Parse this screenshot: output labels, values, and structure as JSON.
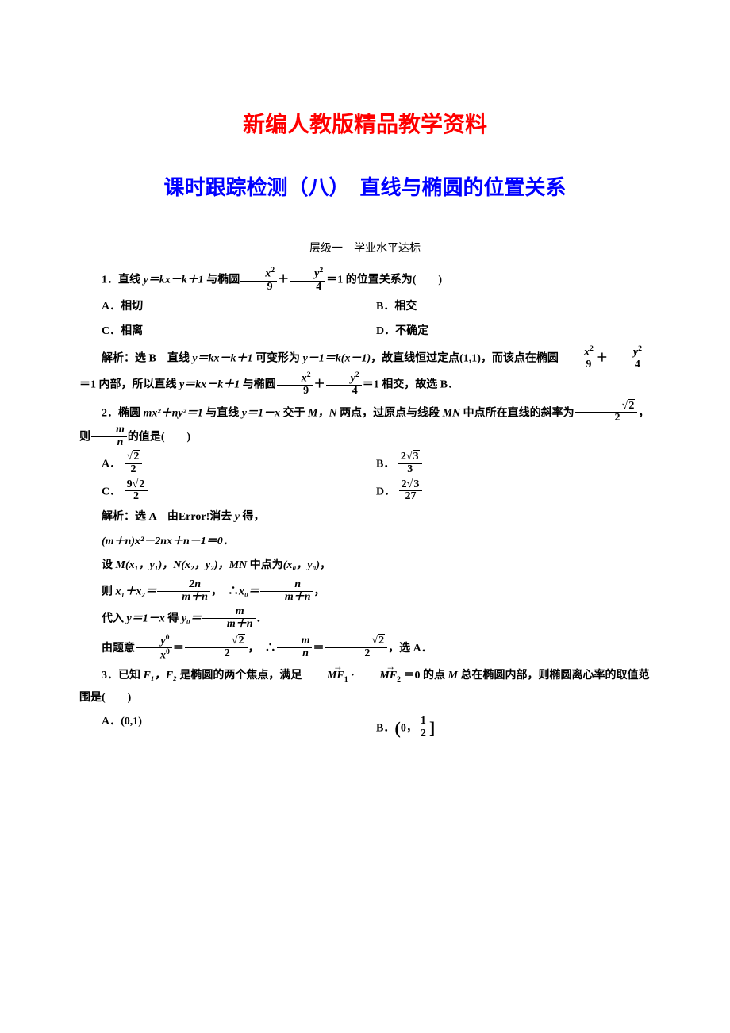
{
  "heading1": "新编人教版精品教学资料",
  "heading2": "课时跟踪检测（八）　直线与椭圆的位置关系",
  "level": "层级一　学业水平达标",
  "q1": {
    "num": "1．",
    "pre": "直线 ",
    "line": "y＝kx－k＋1",
    "mid": " 与椭圆",
    "tail": "＝1 的位置关系为(　　)",
    "frac1n": "x",
    "frac1d": "9",
    "frac2n": "y",
    "frac2d": "4",
    "optA": "A．相切",
    "optB": "B．相交",
    "optC": "C．相离",
    "optD": "D．不确定",
    "sol_label": "解析：",
    "sol_pick": "选 B　",
    "sol1a": "直线 ",
    "sol1b": " 可变形为 ",
    "sol_line2": "y－1＝k(x－1)",
    "sol1c": "，故直线恒过定点",
    "sol_point": "(1,1)",
    "sol1d": "，而该点在椭圆",
    "sol1e": "＝1 内部，所以直线 ",
    "sol1f": " 与椭圆",
    "sol1g": "＝1 相交，故选 B．"
  },
  "q2": {
    "num": "2．",
    "t1": "椭圆 ",
    "eq": "mx²＋ny²＝1",
    "t2": " 与直线 ",
    "line": "y＝1－x",
    "t3": " 交于 ",
    "mn": "M，N",
    "t4": " 两点，过原点与线段 ",
    "mn2": "MN",
    "t5": " 中点所在直线的斜率为",
    "t6": "，则",
    "t7": "的值是(　　)",
    "slope_n": "2",
    "slope_d": "2",
    "mn_n": "m",
    "mn_d": "n",
    "A": "A．",
    "An": "2",
    "Ad": "2",
    "B": "B．",
    "Bn": "3",
    "Bd": "3",
    "Bc": "2",
    "C": "C．",
    "Cn": "2",
    "Cd": "2",
    "Cc": "9",
    "D": "D．",
    "Dn": "3",
    "Dd": "27",
    "Dc": "2",
    "sol_label": "解析：",
    "sol_pick": "选 A　",
    "sol1": "由Error!消去 ",
    "y": "y",
    "sol1b": " 得，",
    "sol2": "(m＋n)x²－2nx＋n－1＝0．",
    "sol3a": "设 ",
    "sol3b": "M(x₁，y₁)，N(x₂，y₂)，MN",
    "sol3c": " 中点为",
    "sol3d": "(x₀，y₀)",
    "sol3e": "，",
    "sol4a": "则 ",
    "sol4b": "x₁＋x₂＝",
    "sol4_n": "2n",
    "sol4_d": "m＋n",
    "sol4c": "，　∴",
    "sol4d": "x₀＝",
    "sol4e_n": "n",
    "sol4e_d": "m＋n",
    "sol4f": "，",
    "sol5a": "代入 ",
    "sol5b": "y＝1－x",
    "sol5c": " 得 ",
    "sol5d": "y₀＝",
    "sol5_n": "m",
    "sol5_d": "m＋n",
    "sol5e": "．",
    "sol6a": "由题意",
    "sol6_1n": "y",
    "sol6_1d": "x",
    "sol6b": "＝",
    "sol6_2n": "2",
    "sol6_2d": "2",
    "sol6c": "，　∴",
    "sol6_3n": "m",
    "sol6_3d": "n",
    "sol6d": "＝",
    "sol6e": "，选 A．"
  },
  "q3": {
    "num": "3．",
    "t1": "已知 ",
    "f": "F₁，F₂",
    "t2": " 是椭圆的两个焦点，满足 ",
    "v1": "MF",
    "v1s": "1",
    "dot": " · ",
    "v2": "MF",
    "v2s": "2",
    "t3": " ＝0 的点 ",
    "M": "M",
    "t4": " 总在椭圆内部，则椭圆离心率的取值范围是(　　)",
    "A": "A．",
    "Aval": "(0,1)",
    "B": "B．",
    "Bpre": "0，",
    "Bn": "1",
    "Bd": "2"
  }
}
